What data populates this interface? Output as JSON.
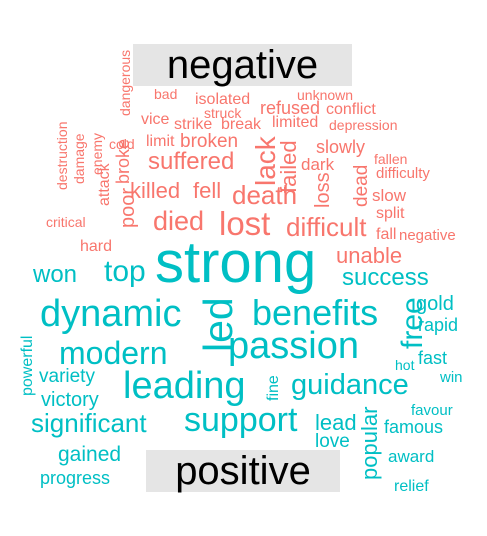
{
  "groups": {
    "negative": {
      "label": "negative",
      "color": "#F8766D",
      "words": [
        "strike",
        "break",
        "limited",
        "depression",
        "vice",
        "limit",
        "broken",
        "slowly",
        "cold",
        "suffered",
        "lack",
        "dark",
        "fallen",
        "difficulty",
        "killed",
        "fell",
        "death",
        "failed",
        "loss",
        "dead",
        "slow",
        "died",
        "lost",
        "difficult",
        "split",
        "critical",
        "poor",
        "fall",
        "negative",
        "hard",
        "unable",
        "bad",
        "unknown",
        "isolated",
        "refused",
        "conflict",
        "struck",
        "dangerous",
        "destruction",
        "damage",
        "enemy",
        "attack",
        "broke"
      ]
    },
    "positive": {
      "label": "positive",
      "color": "#00BFC4",
      "words": [
        "strong",
        "won",
        "top",
        "success",
        "dynamic",
        "benefits",
        "gold",
        "led",
        "free",
        "rapid",
        "modern",
        "passion",
        "fast",
        "hot",
        "variety",
        "leading",
        "guidance",
        "win",
        "powerful",
        "victory",
        "fine",
        "significant",
        "support",
        "lead",
        "favour",
        "famous",
        "love",
        "popular",
        "gained",
        "award",
        "progress",
        "relief"
      ]
    }
  }
}
